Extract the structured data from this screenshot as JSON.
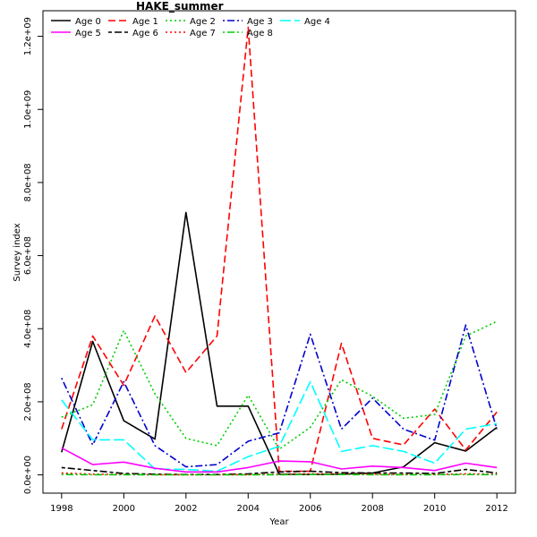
{
  "chart_data": {
    "type": "line",
    "title": "HAKE_summer",
    "xlabel": "Year",
    "ylabel": "Survey index",
    "xlim": [
      1997.4,
      2012.6
    ],
    "ylim": [
      -50000000,
      1270000000
    ],
    "x_ticks": [
      1998,
      2000,
      2002,
      2004,
      2006,
      2008,
      2010,
      2012
    ],
    "y_ticks": [
      0,
      200000000,
      400000000,
      600000000,
      800000000,
      1000000000,
      1200000000
    ],
    "y_tick_labels": [
      "0.0e+00",
      "2.0e+08",
      "4.0e+08",
      "6.0e+08",
      "8.0e+08",
      "1.0e+09",
      "1.2e+09"
    ],
    "legend_position": "top-left",
    "x": [
      1998,
      1999,
      2000,
      2001,
      2002,
      2003,
      2004,
      2005,
      2006,
      2007,
      2008,
      2009,
      2010,
      2011,
      2012
    ],
    "series": [
      {
        "name": "Age 0",
        "color": "#000000",
        "dash": "solid",
        "values": [
          62000000,
          365000000,
          148000000,
          98000000,
          718000000,
          188000000,
          188000000,
          2000000,
          1000000,
          2000000,
          5000000,
          22000000,
          88000000,
          65000000,
          130000000
        ]
      },
      {
        "name": "Age 1",
        "color": "#ff0000",
        "dash": "dashed",
        "values": [
          125000000,
          380000000,
          245000000,
          435000000,
          280000000,
          380000000,
          1225000000,
          10000000,
          10000000,
          360000000,
          100000000,
          82000000,
          180000000,
          68000000,
          172000000
        ]
      },
      {
        "name": "Age 2",
        "color": "#00cd00",
        "dash": "dotted",
        "values": [
          158000000,
          192000000,
          395000000,
          222000000,
          100000000,
          80000000,
          218000000,
          70000000,
          130000000,
          260000000,
          215000000,
          155000000,
          165000000,
          380000000,
          420000000
        ]
      },
      {
        "name": "Age 3",
        "color": "#0000cd",
        "dash": "dotdash",
        "values": [
          265000000,
          82000000,
          255000000,
          80000000,
          22000000,
          28000000,
          92000000,
          115000000,
          385000000,
          125000000,
          210000000,
          125000000,
          95000000,
          410000000,
          125000000
        ]
      },
      {
        "name": "Age 4",
        "color": "#00ffff",
        "dash": "longdash",
        "values": [
          205000000,
          96000000,
          96000000,
          16000000,
          15000000,
          10000000,
          50000000,
          78000000,
          255000000,
          64000000,
          80000000,
          64000000,
          32000000,
          125000000,
          140000000
        ]
      },
      {
        "name": "Age 5",
        "color": "#ff00ff",
        "dash": "solid",
        "values": [
          74000000,
          28000000,
          35000000,
          18000000,
          8000000,
          8000000,
          20000000,
          38000000,
          36000000,
          16000000,
          24000000,
          20000000,
          12000000,
          32000000,
          20000000
        ]
      },
      {
        "name": "Age 6",
        "color": "#000000",
        "dash": "twodash",
        "values": [
          20000000,
          12000000,
          4000000,
          2000000,
          1000000,
          1000000,
          3000000,
          8000000,
          10000000,
          6000000,
          5000000,
          5000000,
          4000000,
          15000000,
          5000000
        ]
      },
      {
        "name": "Age 7",
        "color": "#ff0000",
        "dash": "dotted",
        "values": [
          5000000,
          2000000,
          1000000,
          500000,
          200000,
          200000,
          500000,
          2000000,
          3000000,
          3000000,
          2000000,
          1000000,
          1000000,
          3000000,
          2000000
        ]
      },
      {
        "name": "Age 8",
        "color": "#00cd00",
        "dash": "dotdash",
        "values": [
          1000000,
          500000,
          500000,
          200000,
          100000,
          100000,
          200000,
          500000,
          1000000,
          1000000,
          500000,
          500000,
          500000,
          1000000,
          500000
        ]
      }
    ]
  }
}
